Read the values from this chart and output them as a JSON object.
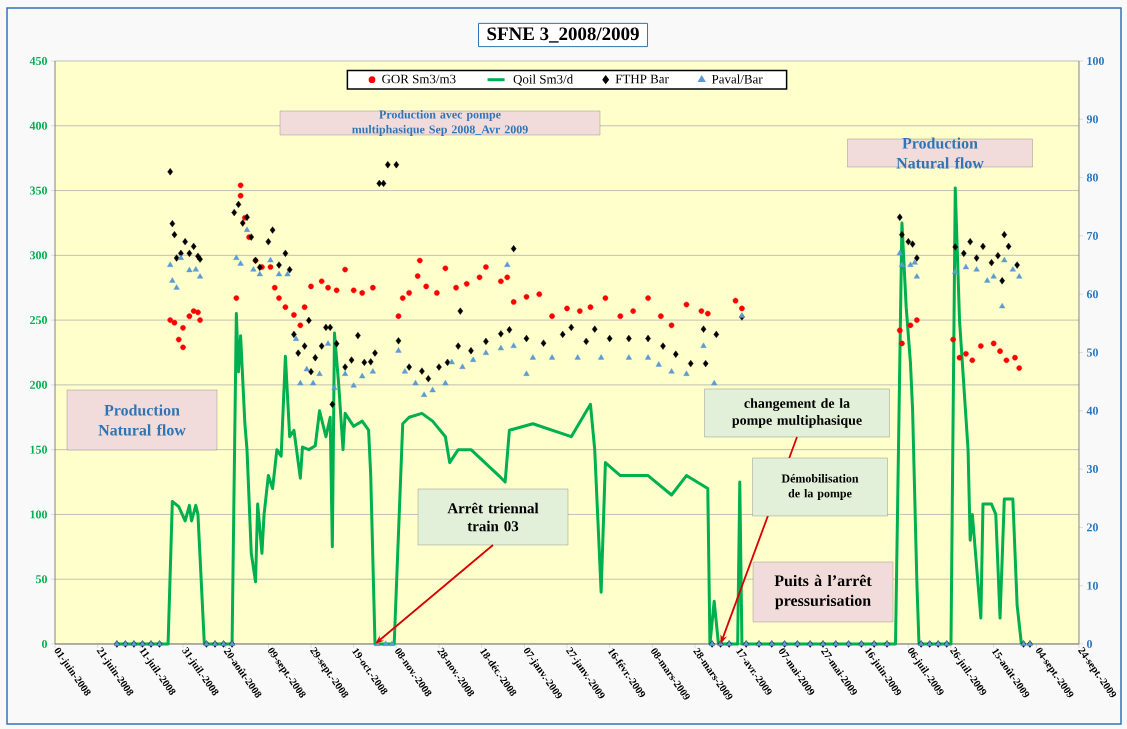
{
  "chart_data": {
    "type": "scatter",
    "title": "SFNE 3_2008/2009",
    "annotations": [
      "Production avec pompe multiphasique Sep 2008_Avr 2009",
      "Production Natural flow",
      "Production Natural flow",
      {
        "text": "Arrêt triennal train 03",
        "x": "2008-10-29",
        "y": 0
      },
      {
        "text": "changement de la pompe multiphasique",
        "x": "2009-04-09",
        "y": 0
      },
      "Démobilisation de la pompe",
      "Puits à l’arrêt pressurisation"
    ],
    "xlim": [
      "2008-06-01",
      "2009-09-24"
    ],
    "xticks": [
      {
        "value": "2008-06-01",
        "label": "01-juin-2008"
      },
      {
        "value": "2008-06-21",
        "label": "21-juin-2008"
      },
      {
        "value": "2008-07-11",
        "label": "11-juil.-2008"
      },
      {
        "value": "2008-07-31",
        "label": "31-juil.-2008"
      },
      {
        "value": "2008-08-20",
        "label": "20-août-2008"
      },
      {
        "value": "2008-09-09",
        "label": "09-sept.-2008"
      },
      {
        "value": "2008-09-29",
        "label": "29-sept.-2008"
      },
      {
        "value": "2008-10-19",
        "label": "19-oct.-2008"
      },
      {
        "value": "2008-11-08",
        "label": "08-nov.-2008"
      },
      {
        "value": "2008-11-28",
        "label": "28-nov.-2008"
      },
      {
        "value": "2008-12-18",
        "label": "18-déc.-2008"
      },
      {
        "value": "2009-01-07",
        "label": "07-janv.-2009"
      },
      {
        "value": "2009-01-27",
        "label": "27-janv.-2009"
      },
      {
        "value": "2009-02-16",
        "label": "16-févr.-2009"
      },
      {
        "value": "2009-03-08",
        "label": "08-mars-2009"
      },
      {
        "value": "2009-03-28",
        "label": "28-mars-2009"
      },
      {
        "value": "2009-04-17",
        "label": "17-avr.-2009"
      },
      {
        "value": "2009-05-07",
        "label": "07-mai-2009"
      },
      {
        "value": "2009-05-27",
        "label": "27-mai-2009"
      },
      {
        "value": "2009-06-16",
        "label": "16-juin-2009"
      },
      {
        "value": "2009-07-06",
        "label": "06-juil.-2009"
      },
      {
        "value": "2009-07-26",
        "label": "26-juil.-2009"
      },
      {
        "value": "2009-08-15",
        "label": "15-août-2009"
      },
      {
        "value": "2009-09-04",
        "label": "04-sept.-2009"
      },
      {
        "value": "2009-09-24",
        "label": "24-sept.-2009"
      }
    ],
    "ylim": [
      0,
      450
    ],
    "yticks": [
      0,
      50,
      100,
      150,
      200,
      250,
      300,
      350,
      400,
      450
    ],
    "y2lim": [
      0,
      100
    ],
    "y2ticks": [
      0,
      10,
      20,
      30,
      40,
      50,
      60,
      70,
      80,
      90,
      100
    ],
    "grid": "y",
    "legend": "top",
    "series": [
      {
        "name": "GOR Sm3/m3",
        "marker": "circle",
        "color": "#ff0000",
        "x": [
          "2008-07-25",
          "2008-07-27",
          "2008-07-29",
          "2008-07-31",
          "2008-07-31",
          "2008-08-03",
          "2008-08-05",
          "2008-08-07",
          "2008-08-08",
          "2008-08-25",
          "2008-08-27",
          "2008-08-27",
          "2008-08-29",
          "2008-08-31",
          "2008-09-03",
          "2008-09-06",
          "2008-09-10",
          "2008-09-12",
          "2008-09-14",
          "2008-09-17",
          "2008-09-21",
          "2008-09-24",
          "2008-09-26",
          "2008-09-29",
          "2008-10-04",
          "2008-10-07",
          "2008-10-11",
          "2008-10-15",
          "2008-10-19",
          "2008-10-23",
          "2008-10-28",
          "2008-11-09",
          "2008-11-11",
          "2008-11-14",
          "2008-11-18",
          "2008-11-19",
          "2008-11-22",
          "2008-11-27",
          "2008-12-01",
          "2008-12-06",
          "2008-12-11",
          "2008-12-17",
          "2008-12-20",
          "2008-12-27",
          "2008-12-30",
          "2009-01-02",
          "2009-01-08",
          "2009-01-14",
          "2009-01-20",
          "2009-01-27",
          "2009-02-02",
          "2009-02-07",
          "2009-02-14",
          "2009-02-21",
          "2009-02-27",
          "2009-03-06",
          "2009-03-12",
          "2009-03-17",
          "2009-03-24",
          "2009-03-31",
          "2009-04-03",
          "2009-04-16",
          "2009-04-19",
          "2009-07-02",
          "2009-07-03",
          "2009-07-07",
          "2009-07-10",
          "2009-07-27",
          "2009-07-30",
          "2009-08-02",
          "2009-08-05",
          "2009-08-09",
          "2009-08-15",
          "2009-08-18",
          "2009-08-21",
          "2009-08-25",
          "2009-08-27"
        ],
        "values": [
          250,
          248,
          235,
          229,
          244,
          253,
          257,
          256,
          250,
          267,
          346,
          354,
          329,
          314,
          296,
          291,
          291,
          275,
          267,
          260,
          254,
          246,
          260,
          276,
          280,
          275,
          273,
          289,
          273,
          271,
          275,
          253,
          267,
          271,
          284,
          296,
          276,
          271,
          290,
          275,
          278,
          283,
          291,
          280,
          283,
          264,
          268,
          270,
          253,
          259,
          257,
          260,
          267,
          253,
          257,
          267,
          253,
          246,
          262,
          257,
          255,
          265,
          259,
          242,
          232,
          246,
          250,
          235,
          221,
          224,
          219,
          230,
          232,
          226,
          219,
          221,
          213
        ]
      },
      {
        "name": "Qoil Sm3/d",
        "type": "line",
        "marker": "none",
        "line_style": "solid",
        "color": "#00b050",
        "x": [
          "2008-06-30",
          "2008-07-24",
          "2008-07-26",
          "2008-07-29",
          "2008-08-01",
          "2008-08-03",
          "2008-08-04",
          "2008-08-06",
          "2008-08-07",
          "2008-08-10",
          "2008-08-23",
          "2008-08-25",
          "2008-08-26",
          "2008-08-27",
          "2008-08-29",
          "2008-08-30",
          "2008-09-01",
          "2008-09-03",
          "2008-09-04",
          "2008-09-06",
          "2008-09-07",
          "2008-09-09",
          "2008-09-11",
          "2008-09-13",
          "2008-09-15",
          "2008-09-17",
          "2008-09-19",
          "2008-09-21",
          "2008-09-24",
          "2008-09-25",
          "2008-09-28",
          "2008-10-01",
          "2008-10-03",
          "2008-10-06",
          "2008-10-08",
          "2008-10-09",
          "2008-10-10",
          "2008-10-12",
          "2008-10-14",
          "2008-10-15",
          "2008-10-19",
          "2008-10-23",
          "2008-10-26",
          "2008-10-27",
          "2008-10-29",
          "2008-11-07",
          "2008-11-11",
          "2008-11-14",
          "2008-11-20",
          "2008-11-25",
          "2008-12-01",
          "2008-12-03",
          "2008-12-07",
          "2008-12-13",
          "2008-12-26",
          "2008-12-29",
          "2008-12-31",
          "2009-01-11",
          "2009-01-29",
          "2009-02-07",
          "2009-02-09",
          "2009-02-12",
          "2009-02-14",
          "2009-02-21",
          "2009-03-06",
          "2009-03-17",
          "2009-03-24",
          "2009-04-03",
          "2009-04-04",
          "2009-04-06",
          "2009-04-08",
          "2009-04-17",
          "2009-04-18",
          "2009-04-19",
          "2009-06-30",
          "2009-07-03",
          "2009-07-05",
          "2009-07-07",
          "2009-07-08",
          "2009-07-10",
          "2009-07-11",
          "2009-07-26",
          "2009-07-28",
          "2009-07-30",
          "2009-08-01",
          "2009-08-03",
          "2009-08-04",
          "2009-08-05",
          "2009-08-07",
          "2009-08-09",
          "2009-08-10",
          "2009-08-14",
          "2009-08-16",
          "2009-08-18",
          "2009-08-20",
          "2009-08-24",
          "2009-08-26",
          "2009-08-28"
        ],
        "values": [
          0,
          0,
          110,
          106,
          95,
          107,
          95,
          107,
          100,
          0,
          0,
          255,
          210,
          238,
          170,
          150,
          70,
          48,
          108,
          70,
          100,
          130,
          120,
          150,
          145,
          222,
          160,
          165,
          128,
          152,
          150,
          153,
          180,
          160,
          175,
          75,
          240,
          200,
          150,
          178,
          168,
          172,
          165,
          130,
          0,
          0,
          170,
          175,
          178,
          172,
          160,
          140,
          150,
          150,
          130,
          125,
          165,
          170,
          160,
          185,
          150,
          40,
          140,
          130,
          130,
          115,
          130,
          120,
          0,
          33,
          0,
          0,
          125,
          0,
          0,
          325,
          260,
          217,
          181,
          48,
          0,
          0,
          352,
          250,
          200,
          150,
          80,
          100,
          60,
          20,
          108,
          108,
          100,
          20,
          112,
          112,
          30,
          0
        ]
      },
      {
        "name": "FTHP Bar",
        "marker": "diamond",
        "color": "#000000",
        "axis": "y2",
        "x": [
          "2008-06-30",
          "2008-07-04",
          "2008-07-08",
          "2008-07-12",
          "2008-07-16",
          "2008-07-20",
          "2008-07-25",
          "2008-07-26",
          "2008-07-27",
          "2008-07-28",
          "2008-07-30",
          "2008-08-01",
          "2008-08-03",
          "2008-08-05",
          "2008-08-07",
          "2008-08-08",
          "2008-08-11",
          "2008-08-15",
          "2008-08-19",
          "2008-08-23",
          "2008-08-24",
          "2008-08-26",
          "2008-08-28",
          "2008-08-30",
          "2008-09-01",
          "2008-09-03",
          "2008-09-05",
          "2008-09-09",
          "2008-09-11",
          "2008-09-14",
          "2008-09-17",
          "2008-09-19",
          "2008-09-21",
          "2008-09-23",
          "2008-09-26",
          "2008-09-28",
          "2008-09-29",
          "2008-10-01",
          "2008-10-04",
          "2008-10-06",
          "2008-10-08",
          "2008-10-09",
          "2008-10-11",
          "2008-10-15",
          "2008-10-18",
          "2008-10-21",
          "2008-10-24",
          "2008-10-27",
          "2008-10-29",
          "2008-10-31",
          "2008-11-02",
          "2008-11-04",
          "2008-11-08",
          "2008-11-09",
          "2008-11-14",
          "2008-11-20",
          "2008-11-23",
          "2008-11-28",
          "2008-12-02",
          "2008-12-07",
          "2008-12-08",
          "2008-12-13",
          "2008-12-20",
          "2008-12-27",
          "2008-12-31",
          "2009-01-02",
          "2009-01-08",
          "2009-01-16",
          "2009-01-25",
          "2009-01-29",
          "2009-02-05",
          "2009-02-09",
          "2009-02-16",
          "2009-02-25",
          "2009-03-06",
          "2009-03-13",
          "2009-03-19",
          "2009-03-26",
          "2009-04-01",
          "2009-04-02",
          "2009-04-05",
          "2009-04-07",
          "2009-04-09",
          "2009-04-13",
          "2009-04-19",
          "2009-04-21",
          "2009-04-27",
          "2009-05-03",
          "2009-05-09",
          "2009-05-15",
          "2009-05-21",
          "2009-05-27",
          "2009-06-02",
          "2009-06-08",
          "2009-06-14",
          "2009-06-20",
          "2009-06-26",
          "2009-07-02",
          "2009-07-03",
          "2009-07-06",
          "2009-07-08",
          "2009-07-10",
          "2009-07-12",
          "2009-07-16",
          "2009-07-20",
          "2009-07-24",
          "2009-07-28",
          "2009-08-01",
          "2009-08-04",
          "2009-08-07",
          "2009-08-10",
          "2009-08-14",
          "2009-08-17",
          "2009-08-19",
          "2009-08-20",
          "2009-08-22",
          "2009-08-26",
          "2009-08-29",
          "2009-09-01"
        ],
        "values": [
          0,
          0,
          0,
          0,
          0,
          0,
          81.0,
          72.1,
          70.2,
          66.2,
          67.0,
          69.0,
          67.0,
          68.2,
          66.5,
          66.0,
          0,
          0,
          0,
          0,
          74.0,
          75.4,
          72.2,
          73.2,
          69.8,
          65.8,
          64.6,
          69.0,
          71.0,
          65.0,
          67.0,
          64.2,
          53.1,
          49.9,
          51.1,
          55.5,
          46.7,
          49.1,
          51.1,
          54.3,
          54.3,
          41.1,
          51.5,
          47.5,
          48.7,
          52.9,
          48.3,
          48.4,
          49.9,
          79.0,
          79.0,
          82.2,
          82.2,
          52.0,
          47.5,
          46.8,
          45.5,
          47.5,
          48.3,
          51.1,
          57.1,
          50.3,
          51.9,
          53.2,
          53.9,
          67.8,
          52.4,
          51.6,
          53.1,
          54.3,
          51.9,
          54.0,
          52.4,
          52.4,
          52.4,
          51.1,
          49.7,
          48.1,
          54.0,
          48.1,
          0,
          53.1,
          0,
          0,
          56.1,
          0,
          0,
          0,
          0,
          0,
          0,
          0,
          0,
          0,
          0,
          0,
          0,
          73.2,
          70.2,
          69.0,
          68.6,
          66.2,
          0,
          0,
          0,
          0,
          68.1,
          67.0,
          69.0,
          66.2,
          68.2,
          65.4,
          66.6,
          62.3,
          70.2,
          68.2,
          65.0,
          0,
          0
        ]
      },
      {
        "name": "Paval/Bar",
        "marker": "triangle",
        "color": "#5b9bd5",
        "axis": "y2",
        "x": [
          "2008-06-30",
          "2008-07-04",
          "2008-07-08",
          "2008-07-12",
          "2008-07-16",
          "2008-07-20",
          "2008-07-25",
          "2008-07-26",
          "2008-07-28",
          "2008-07-30",
          "2008-08-03",
          "2008-08-06",
          "2008-08-08",
          "2008-08-11",
          "2008-08-15",
          "2008-08-19",
          "2008-08-23",
          "2008-08-25",
          "2008-08-27",
          "2008-08-30",
          "2008-09-02",
          "2008-09-05",
          "2008-09-10",
          "2008-09-14",
          "2008-09-18",
          "2008-09-22",
          "2008-09-24",
          "2008-09-27",
          "2008-09-30",
          "2008-10-03",
          "2008-10-07",
          "2008-10-10",
          "2008-10-15",
          "2008-10-19",
          "2008-10-23",
          "2008-10-28",
          "2008-10-30",
          "2008-11-03",
          "2008-11-06",
          "2008-11-09",
          "2008-11-12",
          "2008-11-17",
          "2008-11-21",
          "2008-11-25",
          "2008-12-01",
          "2008-12-04",
          "2008-12-09",
          "2008-12-14",
          "2008-12-20",
          "2008-12-27",
          "2008-12-30",
          "2009-01-02",
          "2009-01-08",
          "2009-01-11",
          "2009-01-20",
          "2009-02-01",
          "2009-02-12",
          "2009-02-25",
          "2009-03-06",
          "2009-03-11",
          "2009-03-17",
          "2009-03-24",
          "2009-04-01",
          "2009-04-05",
          "2009-04-06",
          "2009-04-09",
          "2009-04-13",
          "2009-04-19",
          "2009-04-21",
          "2009-04-27",
          "2009-05-03",
          "2009-05-09",
          "2009-05-15",
          "2009-05-21",
          "2009-05-27",
          "2009-06-02",
          "2009-06-08",
          "2009-06-14",
          "2009-06-20",
          "2009-06-26",
          "2009-07-02",
          "2009-07-03",
          "2009-07-07",
          "2009-07-09",
          "2009-07-10",
          "2009-07-12",
          "2009-07-16",
          "2009-07-20",
          "2009-07-24",
          "2009-07-28",
          "2009-08-02",
          "2009-08-07",
          "2009-08-12",
          "2009-08-15",
          "2009-08-19",
          "2009-08-20",
          "2009-08-24",
          "2009-08-27",
          "2009-08-29",
          "2009-09-01"
        ],
        "values": [
          0,
          0,
          0,
          0,
          0,
          0,
          65.0,
          62.3,
          61.1,
          66.2,
          64.1,
          64.2,
          63.0,
          0,
          0,
          0,
          0,
          66.2,
          65.2,
          71.0,
          64.2,
          63.4,
          65.8,
          63.4,
          63.4,
          52.3,
          44.7,
          47.1,
          44.7,
          46.3,
          51.5,
          43.9,
          46.3,
          44.3,
          45.9,
          46.7,
          0,
          0,
          0,
          50.3,
          46.7,
          44.7,
          42.7,
          43.5,
          44.7,
          48.3,
          47.5,
          48.7,
          49.9,
          50.7,
          65.0,
          51.1,
          46.3,
          49.1,
          49.1,
          49.1,
          49.1,
          49.1,
          49.1,
          47.9,
          46.7,
          46.3,
          51.1,
          0,
          44.7,
          0,
          0,
          56.3,
          0,
          0,
          0,
          0,
          0,
          0,
          0,
          0,
          0,
          0,
          0,
          0,
          67.0,
          65.0,
          65.0,
          65.4,
          63.0,
          0,
          0,
          0,
          0,
          63.8,
          64.6,
          64.2,
          62.3,
          63.0,
          57.9,
          65.8,
          64.2,
          63.0,
          0,
          0
        ]
      }
    ]
  }
}
